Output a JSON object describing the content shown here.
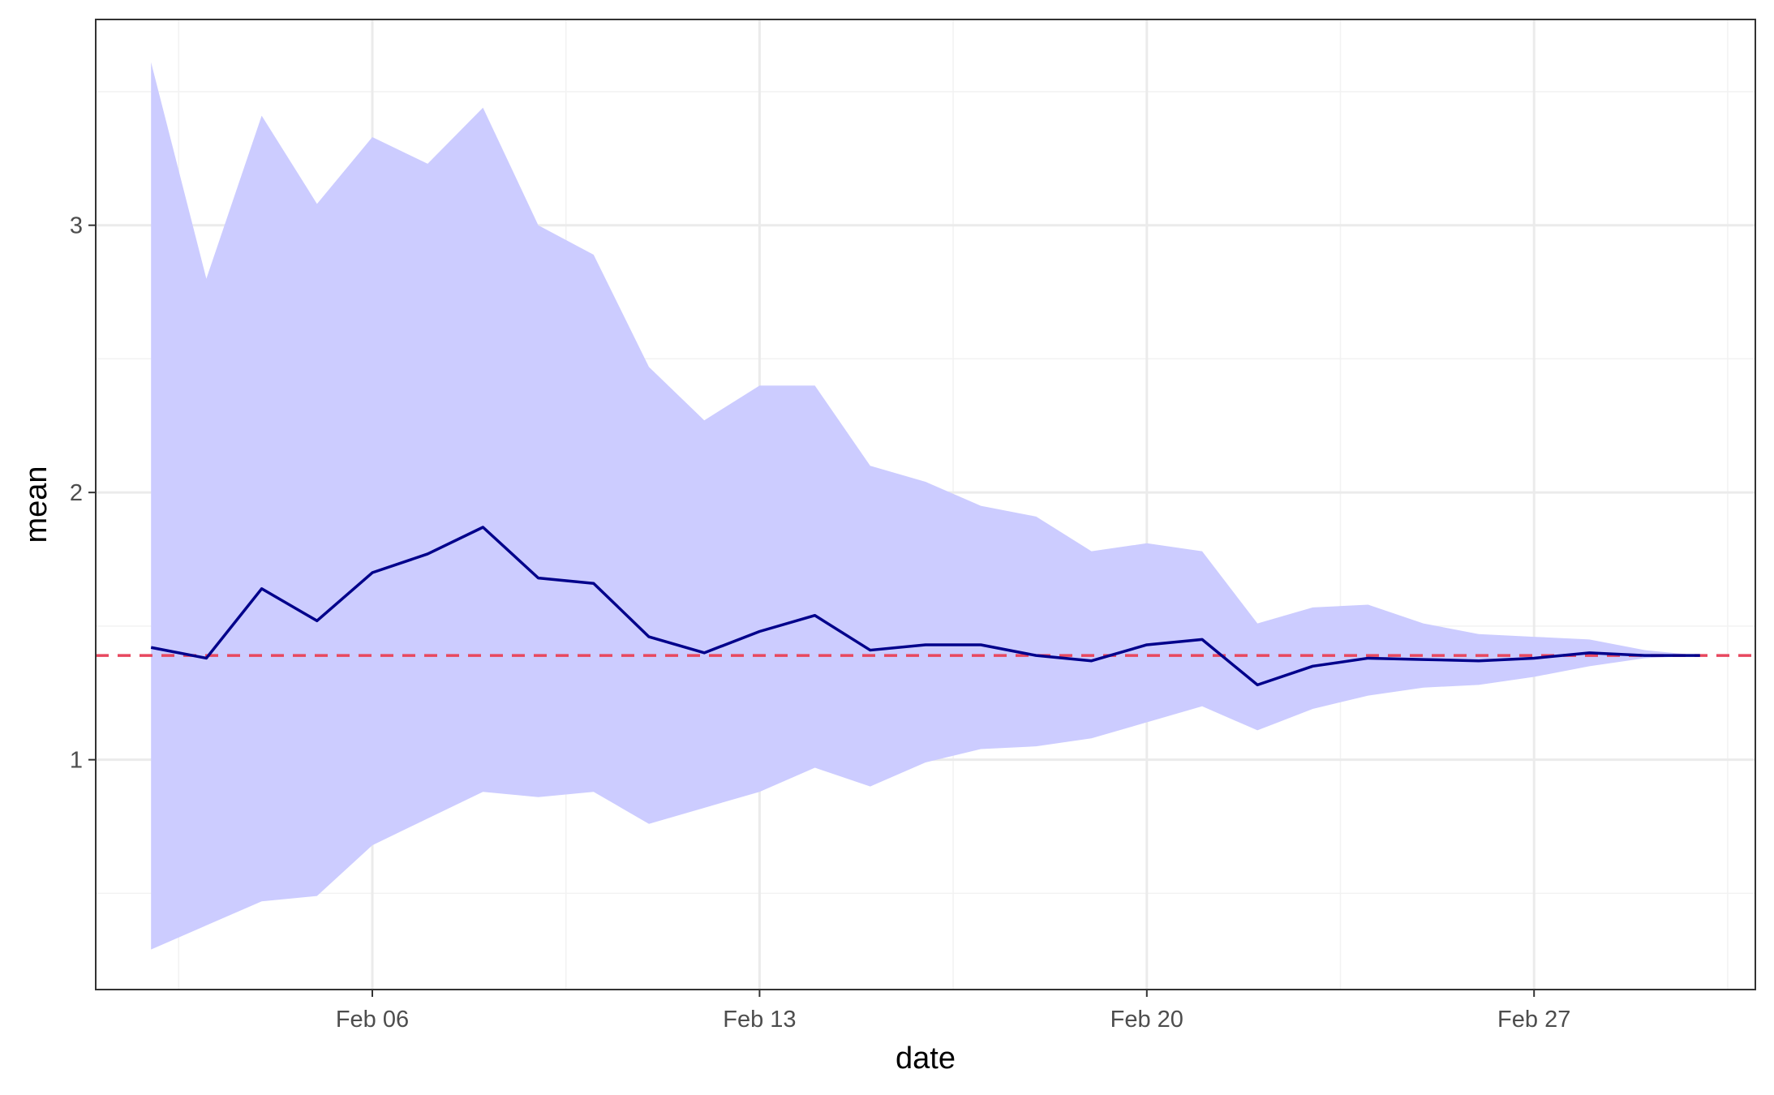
{
  "chart_data": {
    "type": "line",
    "title": "",
    "xlabel": "date",
    "ylabel": "mean",
    "x": [
      "2020-02-02",
      "2020-02-03",
      "2020-02-04",
      "2020-02-05",
      "2020-02-06",
      "2020-02-07",
      "2020-02-08",
      "2020-02-09",
      "2020-02-10",
      "2020-02-11",
      "2020-02-12",
      "2020-02-13",
      "2020-02-14",
      "2020-02-15",
      "2020-02-16",
      "2020-02-17",
      "2020-02-18",
      "2020-02-19",
      "2020-02-20",
      "2020-02-21",
      "2020-02-22",
      "2020-02-23",
      "2020-02-24",
      "2020-02-25",
      "2020-02-26",
      "2020-02-27",
      "2020-02-28",
      "2020-02-29",
      "2020-03-01"
    ],
    "series": [
      {
        "type": "line",
        "color": "#00008B",
        "values": [
          1.42,
          1.38,
          1.64,
          1.52,
          1.7,
          1.77,
          1.87,
          1.68,
          1.66,
          1.46,
          1.4,
          1.48,
          1.54,
          1.41,
          1.43,
          1.43,
          1.39,
          1.37,
          1.43,
          1.45,
          1.28,
          1.35,
          1.38,
          1.375,
          1.37,
          1.38,
          1.4,
          1.39,
          1.39
        ]
      },
      {
        "type": "ribbon",
        "color": "#CCCCFF",
        "upper": [
          3.61,
          2.8,
          3.41,
          3.08,
          3.33,
          3.23,
          3.44,
          3.0,
          2.89,
          2.47,
          2.27,
          2.4,
          2.4,
          2.1,
          2.04,
          1.95,
          1.91,
          1.78,
          1.81,
          1.78,
          1.51,
          1.57,
          1.58,
          1.51,
          1.47,
          1.46,
          1.45,
          1.41,
          1.39
        ],
        "lower": [
          0.29,
          0.38,
          0.47,
          0.49,
          0.68,
          0.78,
          0.88,
          0.86,
          0.88,
          0.76,
          0.82,
          0.88,
          0.97,
          0.9,
          0.99,
          1.04,
          1.05,
          1.08,
          1.14,
          1.2,
          1.11,
          1.19,
          1.24,
          1.27,
          1.28,
          1.31,
          1.35,
          1.38,
          1.39
        ]
      },
      {
        "type": "hline",
        "color": "#E8485F",
        "dash": "dashed",
        "value": 1.39
      }
    ],
    "x_ticks": [
      {
        "date": "2020-02-06",
        "label": "Feb 06"
      },
      {
        "date": "2020-02-13",
        "label": "Feb 13"
      },
      {
        "date": "2020-02-20",
        "label": "Feb 20"
      },
      {
        "date": "2020-02-27",
        "label": "Feb 27"
      }
    ],
    "y_ticks": [
      1,
      2,
      3
    ],
    "xlim": [
      "2020-02-01",
      "2020-03-02"
    ],
    "ylim": [
      0.14,
      3.77
    ],
    "grid": true,
    "legend": "none"
  }
}
